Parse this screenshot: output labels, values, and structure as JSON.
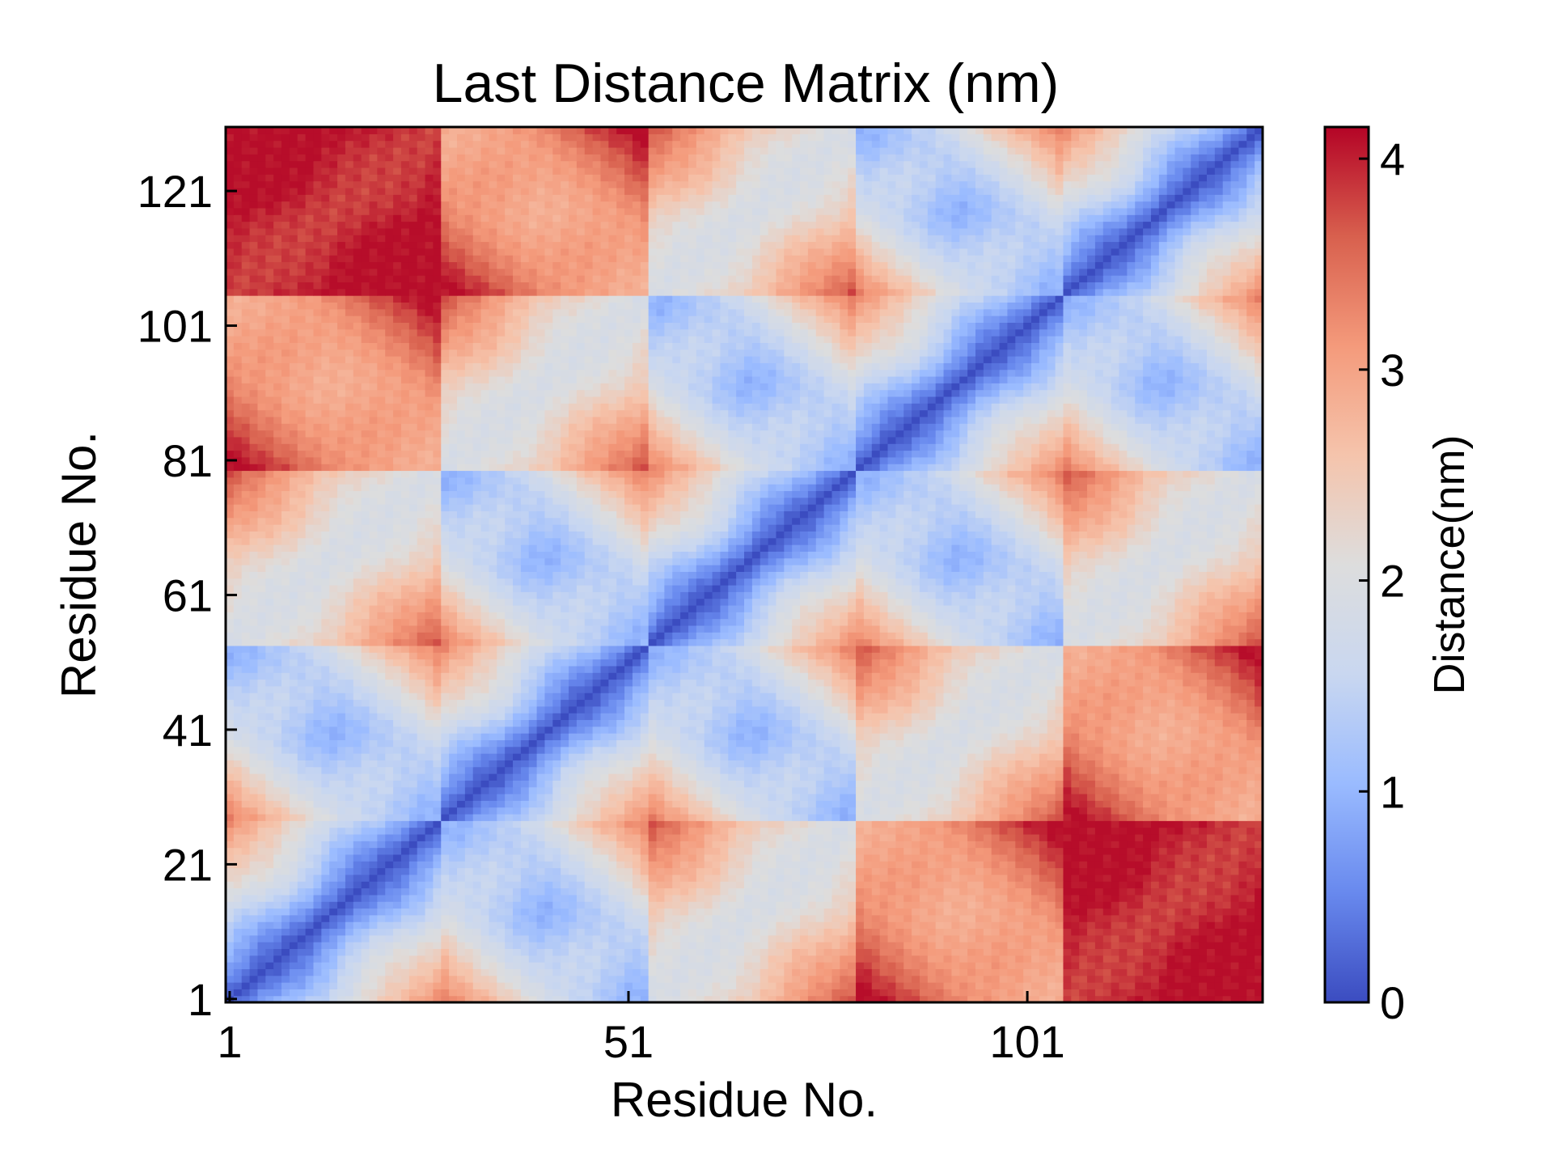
{
  "chart_data": {
    "type": "heatmap",
    "title": "Last Distance Matrix (nm)",
    "xlabel": "Residue No.",
    "ylabel": "Residue No.",
    "n_residues": 130,
    "x_ticks": [
      1,
      51,
      101
    ],
    "y_ticks": [
      1,
      21,
      41,
      61,
      81,
      101,
      121
    ],
    "colorbar": {
      "label": "Distance(nm)",
      "range": [
        0,
        4.15
      ],
      "ticks": [
        0,
        1,
        2,
        3,
        4
      ],
      "colormap": "coolwarm",
      "stops": [
        "#3b4cc0",
        "#6889ee",
        "#9abbff",
        "#c9d7f0",
        "#dddddd",
        "#f5c4ac",
        "#f49a7b",
        "#d8604e",
        "#b40426"
      ]
    },
    "segment_boundaries": [
      27,
      53,
      79,
      105
    ],
    "description_values": {
      "diagonal_distance": 0,
      "min_distance": 0,
      "max_distance": 4.1
    }
  }
}
